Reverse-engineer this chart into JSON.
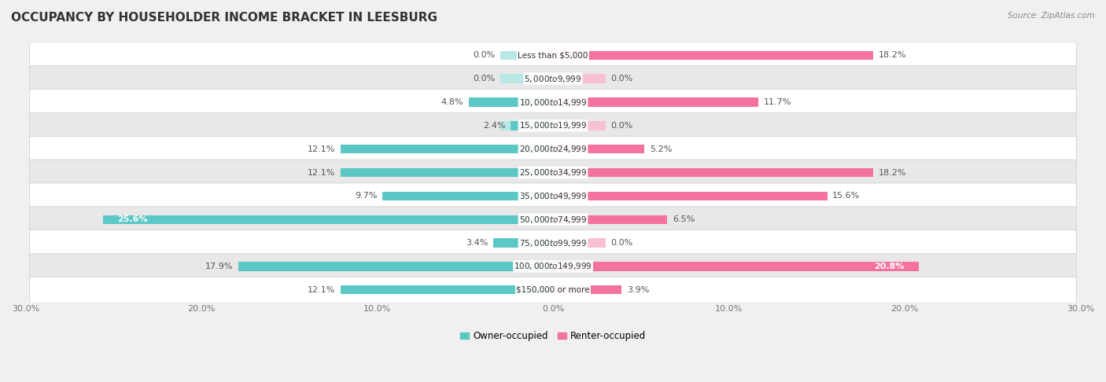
{
  "title": "OCCUPANCY BY HOUSEHOLDER INCOME BRACKET IN LEESBURG",
  "source": "Source: ZipAtlas.com",
  "categories": [
    "Less than $5,000",
    "$5,000 to $9,999",
    "$10,000 to $14,999",
    "$15,000 to $19,999",
    "$20,000 to $24,999",
    "$25,000 to $34,999",
    "$35,000 to $49,999",
    "$50,000 to $74,999",
    "$75,000 to $99,999",
    "$100,000 to $149,999",
    "$150,000 or more"
  ],
  "owner_values": [
    0.0,
    0.0,
    4.8,
    2.4,
    12.1,
    12.1,
    9.7,
    25.6,
    3.4,
    17.9,
    12.1
  ],
  "renter_values": [
    18.2,
    0.0,
    11.7,
    0.0,
    5.2,
    18.2,
    15.6,
    6.5,
    0.0,
    20.8,
    3.9
  ],
  "owner_color": "#5bc8c5",
  "owner_ghost_color": "#b8e8e6",
  "renter_color": "#f472a0",
  "renter_ghost_color": "#f9c0d5",
  "owner_label": "Owner-occupied",
  "renter_label": "Renter-occupied",
  "xlim": 30.0,
  "bg_color": "#f0f0f0",
  "row_bg_colors": [
    "#ffffff",
    "#e8e8e8"
  ],
  "title_fontsize": 11,
  "label_fontsize": 8,
  "cat_fontsize": 7.5,
  "tick_fontsize": 8,
  "source_fontsize": 7.5,
  "value_inside_threshold": 20.0,
  "ghost_min": 3.0
}
